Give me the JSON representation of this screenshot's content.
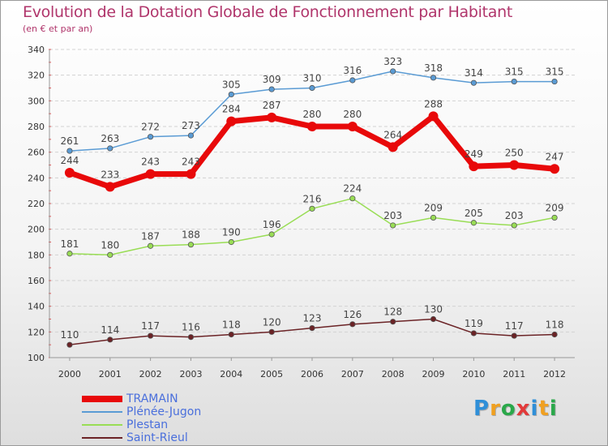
{
  "header": {
    "title": "Evolution de la Dotation Globale de Fonctionnement par Habitant",
    "subtitle": "(en € et par an)"
  },
  "brand": {
    "letters": [
      "P",
      "r",
      "o",
      "x",
      "i",
      "t",
      "i"
    ],
    "colors": [
      "#2f8fd8",
      "#f0a020",
      "#2aa84a",
      "#e23a3a",
      "#2f8fd8",
      "#f0a020",
      "#2aa84a"
    ]
  },
  "chart_data": {
    "type": "line",
    "x": [
      "2000",
      "2001",
      "2002",
      "2003",
      "2004",
      "2005",
      "2006",
      "2007",
      "2008",
      "2009",
      "2010",
      "2011",
      "2012"
    ],
    "ylim": [
      100,
      340
    ],
    "yticks": [
      100,
      120,
      140,
      160,
      180,
      200,
      220,
      240,
      260,
      280,
      300,
      320,
      340
    ],
    "grid": true,
    "legend_position": "bottom-left",
    "series": [
      {
        "name": "TRAMAIN",
        "color": "#e8090a",
        "values": [
          244,
          233,
          243,
          243,
          284,
          287,
          280,
          280,
          264,
          288,
          249,
          250,
          247
        ]
      },
      {
        "name": "Plénée-Jugon",
        "color": "#5a9bd4",
        "values": [
          261,
          263,
          272,
          273,
          305,
          309,
          310,
          316,
          323,
          318,
          314,
          315,
          315
        ]
      },
      {
        "name": "Plestan",
        "color": "#99dd55",
        "values": [
          181,
          180,
          187,
          188,
          190,
          196,
          216,
          224,
          203,
          209,
          205,
          203,
          209
        ]
      },
      {
        "name": "Saint-Rieul",
        "color": "#6b2326",
        "values": [
          110,
          114,
          117,
          116,
          118,
          120,
          123,
          126,
          128,
          130,
          119,
          117,
          118
        ]
      }
    ]
  }
}
